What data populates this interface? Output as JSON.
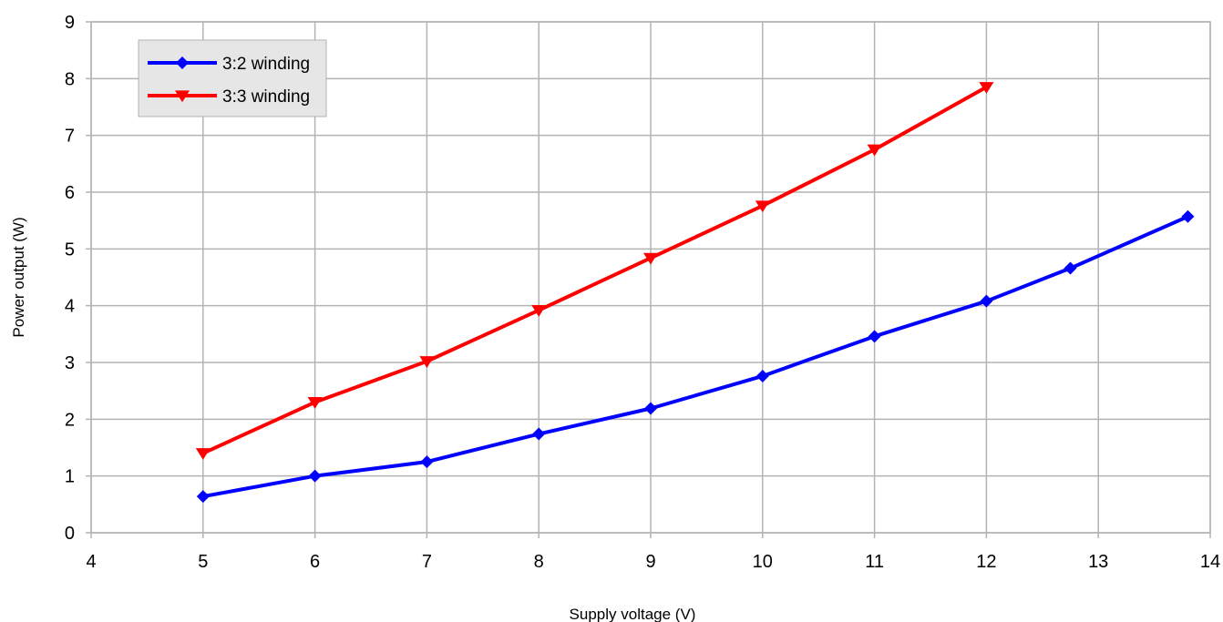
{
  "chart_data": {
    "type": "line",
    "xlabel": "Supply voltage (V)",
    "ylabel": "Power output (W)",
    "xlim": [
      4,
      14
    ],
    "ylim": [
      0,
      9
    ],
    "xticks": [
      "4",
      "5",
      "6",
      "7",
      "8",
      "9",
      "10",
      "11",
      "12",
      "13",
      "14"
    ],
    "yticks": [
      "0",
      "1",
      "2",
      "3",
      "4",
      "5",
      "6",
      "7",
      "8",
      "9"
    ],
    "grid": true,
    "legend_position": "top-left",
    "series": [
      {
        "name": "3:2 winding",
        "color": "#0000ff",
        "marker": "diamond",
        "x": [
          5,
          6,
          7,
          8,
          9,
          10,
          11,
          12,
          12.75,
          13.8
        ],
        "y": [
          0.64,
          1.0,
          1.25,
          1.74,
          2.19,
          2.76,
          3.46,
          4.08,
          4.66,
          5.57
        ]
      },
      {
        "name": "3:3 winding",
        "color": "#ff0000",
        "marker": "triangle-down",
        "x": [
          5,
          6,
          7,
          8,
          9,
          10,
          11,
          12
        ],
        "y": [
          1.4,
          2.3,
          3.02,
          3.92,
          4.84,
          5.76,
          6.75,
          7.85
        ]
      }
    ]
  }
}
